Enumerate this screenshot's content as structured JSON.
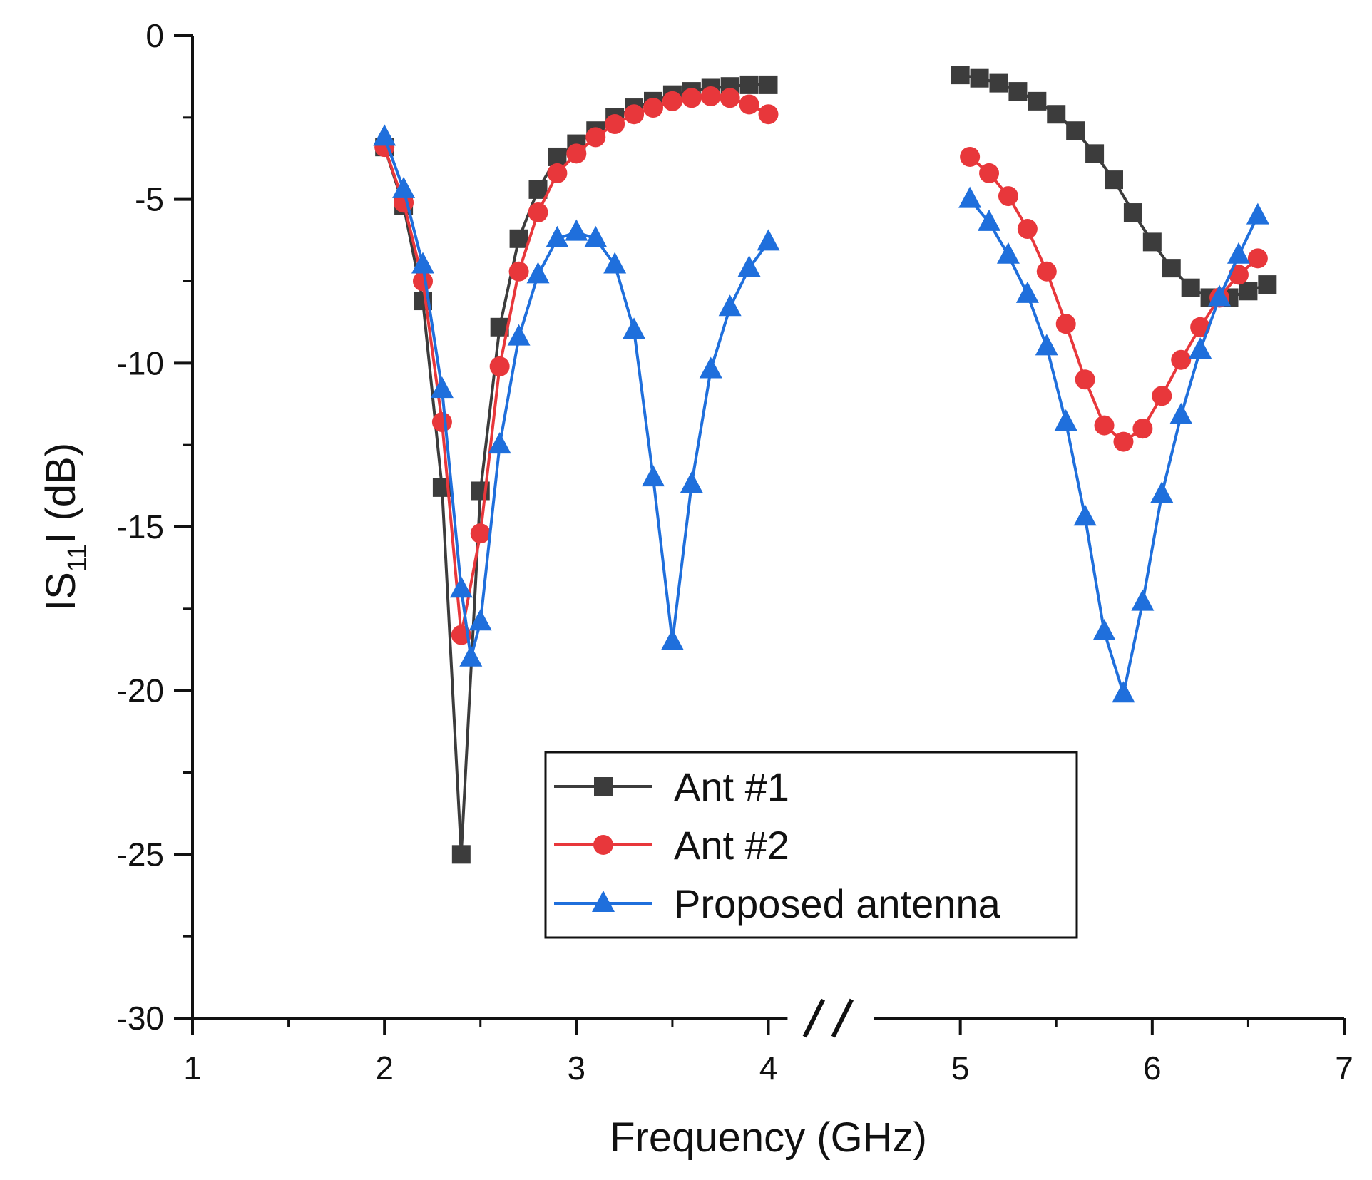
{
  "chart_data": {
    "type": "line",
    "xlabel": "Frequency (GHz)",
    "ylabel_parts": {
      "pre": "IS",
      "sub": "11",
      "post": "I (dB)"
    },
    "xlim": [
      1,
      7
    ],
    "ylim": [
      -30,
      0
    ],
    "x_ticks": [
      1,
      2,
      3,
      4,
      5,
      6,
      7
    ],
    "y_ticks": [
      0,
      -5,
      -10,
      -15,
      -20,
      -25,
      -30
    ],
    "x_tick_labels": [
      "1",
      "2",
      "3",
      "4",
      "5",
      "6",
      "7"
    ],
    "y_tick_labels": [
      "0",
      "-5",
      "-10",
      "-15",
      "-20",
      "-25",
      "-30"
    ],
    "axis_break": {
      "from": 4.05,
      "to": 5.0,
      "symbol": "//"
    },
    "legend_position": "center-bottom",
    "series": [
      {
        "name": "Ant #1",
        "color": "#3c3c3c",
        "marker": "square",
        "segments": [
          [
            [
              2.0,
              -3.4
            ],
            [
              2.1,
              -5.2
            ],
            [
              2.2,
              -8.1
            ],
            [
              2.3,
              -13.8
            ],
            [
              2.4,
              -25.0
            ],
            [
              2.5,
              -13.9
            ],
            [
              2.6,
              -8.9
            ],
            [
              2.7,
              -6.2
            ],
            [
              2.8,
              -4.7
            ],
            [
              2.9,
              -3.7
            ],
            [
              3.0,
              -3.3
            ],
            [
              3.1,
              -2.9
            ],
            [
              3.2,
              -2.5
            ],
            [
              3.3,
              -2.2
            ],
            [
              3.4,
              -2.0
            ],
            [
              3.5,
              -1.8
            ],
            [
              3.6,
              -1.7
            ],
            [
              3.7,
              -1.6
            ],
            [
              3.8,
              -1.55
            ],
            [
              3.9,
              -1.5
            ],
            [
              4.0,
              -1.5
            ]
          ],
          [
            [
              5.0,
              -1.2
            ],
            [
              5.1,
              -1.3
            ],
            [
              5.2,
              -1.45
            ],
            [
              5.3,
              -1.7
            ],
            [
              5.4,
              -2.0
            ],
            [
              5.5,
              -2.4
            ],
            [
              5.6,
              -2.9
            ],
            [
              5.7,
              -3.6
            ],
            [
              5.8,
              -4.4
            ],
            [
              5.9,
              -5.4
            ],
            [
              6.0,
              -6.3
            ],
            [
              6.1,
              -7.1
            ],
            [
              6.2,
              -7.7
            ],
            [
              6.3,
              -8.0
            ],
            [
              6.4,
              -8.0
            ],
            [
              6.5,
              -7.8
            ],
            [
              6.6,
              -7.6
            ]
          ]
        ]
      },
      {
        "name": "Ant #2",
        "color": "#e8373b",
        "marker": "circle",
        "segments": [
          [
            [
              2.0,
              -3.4
            ],
            [
              2.1,
              -5.1
            ],
            [
              2.2,
              -7.5
            ],
            [
              2.3,
              -11.8
            ],
            [
              2.4,
              -18.3
            ],
            [
              2.5,
              -15.2
            ],
            [
              2.6,
              -10.1
            ],
            [
              2.7,
              -7.2
            ],
            [
              2.8,
              -5.4
            ],
            [
              2.9,
              -4.2
            ],
            [
              3.0,
              -3.6
            ],
            [
              3.1,
              -3.1
            ],
            [
              3.2,
              -2.7
            ],
            [
              3.3,
              -2.4
            ],
            [
              3.4,
              -2.2
            ],
            [
              3.5,
              -2.0
            ],
            [
              3.6,
              -1.9
            ],
            [
              3.7,
              -1.85
            ],
            [
              3.8,
              -1.9
            ],
            [
              3.9,
              -2.1
            ],
            [
              4.0,
              -2.4
            ]
          ],
          [
            [
              5.05,
              -3.7
            ],
            [
              5.15,
              -4.2
            ],
            [
              5.25,
              -4.9
            ],
            [
              5.35,
              -5.9
            ],
            [
              5.45,
              -7.2
            ],
            [
              5.55,
              -8.8
            ],
            [
              5.65,
              -10.5
            ],
            [
              5.75,
              -11.9
            ],
            [
              5.85,
              -12.4
            ],
            [
              5.95,
              -12.0
            ],
            [
              6.05,
              -11.0
            ],
            [
              6.15,
              -9.9
            ],
            [
              6.25,
              -8.9
            ],
            [
              6.35,
              -8.0
            ],
            [
              6.45,
              -7.3
            ],
            [
              6.55,
              -6.8
            ]
          ]
        ]
      },
      {
        "name": "Proposed antenna",
        "color": "#1f6fdc",
        "marker": "triangle",
        "segments": [
          [
            [
              2.0,
              -3.1
            ],
            [
              2.1,
              -4.7
            ],
            [
              2.2,
              -7.0
            ],
            [
              2.3,
              -10.8
            ],
            [
              2.4,
              -16.9
            ],
            [
              2.45,
              -19.0
            ],
            [
              2.5,
              -17.9
            ],
            [
              2.6,
              -12.5
            ],
            [
              2.7,
              -9.2
            ],
            [
              2.8,
              -7.3
            ],
            [
              2.9,
              -6.2
            ],
            [
              3.0,
              -6.0
            ],
            [
              3.1,
              -6.2
            ],
            [
              3.2,
              -7.0
            ],
            [
              3.3,
              -9.0
            ],
            [
              3.4,
              -13.5
            ],
            [
              3.5,
              -18.5
            ],
            [
              3.6,
              -13.7
            ],
            [
              3.7,
              -10.2
            ],
            [
              3.8,
              -8.3
            ],
            [
              3.9,
              -7.1
            ],
            [
              4.0,
              -6.3
            ]
          ],
          [
            [
              5.05,
              -5.0
            ],
            [
              5.15,
              -5.7
            ],
            [
              5.25,
              -6.7
            ],
            [
              5.35,
              -7.9
            ],
            [
              5.45,
              -9.5
            ],
            [
              5.55,
              -11.8
            ],
            [
              5.65,
              -14.7
            ],
            [
              5.75,
              -18.2
            ],
            [
              5.85,
              -20.1
            ],
            [
              5.95,
              -17.3
            ],
            [
              6.05,
              -14.0
            ],
            [
              6.15,
              -11.6
            ],
            [
              6.25,
              -9.6
            ],
            [
              6.35,
              -8.0
            ],
            [
              6.45,
              -6.7
            ],
            [
              6.55,
              -5.5
            ]
          ]
        ]
      }
    ]
  }
}
